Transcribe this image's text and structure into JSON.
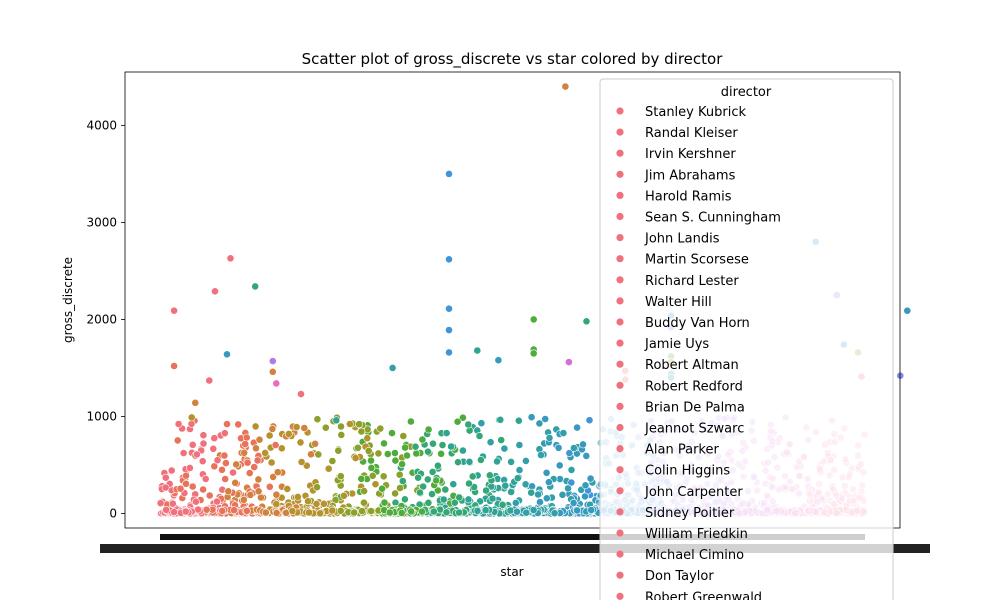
{
  "chart_data": {
    "type": "scatter",
    "title": "Scatter plot of gross_discrete vs star colored by director",
    "xlabel": "star",
    "ylabel": "gross_discrete",
    "ylim": [
      -150,
      4550
    ],
    "yticks": [
      0,
      1000,
      2000,
      3000,
      4000
    ],
    "grid": false,
    "legend": {
      "title": "director",
      "placement": "top-right",
      "entries": [
        {
          "name": "Stanley Kubrick",
          "color": "#f0717c"
        },
        {
          "name": "Randal Kleiser",
          "color": "#f0717c"
        },
        {
          "name": "Irvin Kershner",
          "color": "#f0717c"
        },
        {
          "name": "Jim Abrahams",
          "color": "#f0717c"
        },
        {
          "name": "Harold Ramis",
          "color": "#f0717c"
        },
        {
          "name": "Sean S. Cunningham",
          "color": "#f0717c"
        },
        {
          "name": "John Landis",
          "color": "#f0717c"
        },
        {
          "name": "Martin Scorsese",
          "color": "#f0717c"
        },
        {
          "name": "Richard Lester",
          "color": "#f0717c"
        },
        {
          "name": "Walter Hill",
          "color": "#f0717c"
        },
        {
          "name": "Buddy Van Horn",
          "color": "#f0717c"
        },
        {
          "name": "Jamie Uys",
          "color": "#f0717c"
        },
        {
          "name": "Robert Altman",
          "color": "#f0717c"
        },
        {
          "name": "Robert Redford",
          "color": "#f0717c"
        },
        {
          "name": "Brian De Palma",
          "color": "#f0717c"
        },
        {
          "name": "Jeannot Szwarc",
          "color": "#f0717c"
        },
        {
          "name": "Alan Parker",
          "color": "#f0717c"
        },
        {
          "name": "Colin Higgins",
          "color": "#f0717c"
        },
        {
          "name": "John Carpenter",
          "color": "#f0717c"
        },
        {
          "name": "Sidney Poitier",
          "color": "#f0717c"
        },
        {
          "name": "William Friedkin",
          "color": "#f0717c"
        },
        {
          "name": "Michael Cimino",
          "color": "#f0717c"
        },
        {
          "name": "Don Taylor",
          "color": "#f0717c"
        },
        {
          "name": "Robert Greenwald",
          "color": "#f0717c"
        }
      ]
    },
    "palette": [
      "#f0717c",
      "#e8735a",
      "#d3813f",
      "#b5922d",
      "#8f9f2b",
      "#4fab3a",
      "#35a776",
      "#31a393",
      "#339fa8",
      "#379abd",
      "#4294d6",
      "#7f8ae8",
      "#b07de8",
      "#d46fd6",
      "#ee6ab8",
      "#f47298"
    ],
    "highlights": [
      {
        "x": 0.02,
        "y": 2090,
        "color": "#f0717c"
      },
      {
        "x": 0.02,
        "y": 1520,
        "color": "#e8735a"
      },
      {
        "x": 0.05,
        "y": 1140,
        "color": "#d3813f"
      },
      {
        "x": 0.045,
        "y": 990,
        "color": "#b5922d"
      },
      {
        "x": 0.07,
        "y": 1370,
        "color": "#f0717c"
      },
      {
        "x": 0.078,
        "y": 2290,
        "color": "#f0717c"
      },
      {
        "x": 0.095,
        "y": 1640,
        "color": "#379abd"
      },
      {
        "x": 0.1,
        "y": 2630,
        "color": "#f0717c"
      },
      {
        "x": 0.135,
        "y": 2340,
        "color": "#35a776"
      },
      {
        "x": 0.16,
        "y": 1570,
        "color": "#b07de8"
      },
      {
        "x": 0.16,
        "y": 1460,
        "color": "#d3813f"
      },
      {
        "x": 0.165,
        "y": 1340,
        "color": "#ee6ab8"
      },
      {
        "x": 0.2,
        "y": 1230,
        "color": "#f0717c"
      },
      {
        "x": 0.25,
        "y": 960,
        "color": "#31a393"
      },
      {
        "x": 0.33,
        "y": 1500,
        "color": "#339fa8"
      },
      {
        "x": 0.41,
        "y": 3500,
        "color": "#4294d6"
      },
      {
        "x": 0.41,
        "y": 2620,
        "color": "#4294d6"
      },
      {
        "x": 0.41,
        "y": 2110,
        "color": "#4294d6"
      },
      {
        "x": 0.41,
        "y": 1890,
        "color": "#4294d6"
      },
      {
        "x": 0.41,
        "y": 1660,
        "color": "#4294d6"
      },
      {
        "x": 0.45,
        "y": 1680,
        "color": "#31a393"
      },
      {
        "x": 0.48,
        "y": 1580,
        "color": "#379abd"
      },
      {
        "x": 0.53,
        "y": 2000,
        "color": "#4fab3a"
      },
      {
        "x": 0.53,
        "y": 1690,
        "color": "#4fab3a"
      },
      {
        "x": 0.53,
        "y": 1650,
        "color": "#4fab3a"
      },
      {
        "x": 0.575,
        "y": 4400,
        "color": "#d3813f"
      },
      {
        "x": 0.58,
        "y": 1560,
        "color": "#d46fd6"
      },
      {
        "x": 0.605,
        "y": 1980,
        "color": "#35a776"
      },
      {
        "x": 0.66,
        "y": 1470,
        "color": "#f0717c"
      },
      {
        "x": 0.66,
        "y": 1380,
        "color": "#e8735a"
      },
      {
        "x": 0.725,
        "y": 2040,
        "color": "#4294d6"
      },
      {
        "x": 0.725,
        "y": 1920,
        "color": "#7f8ae8"
      },
      {
        "x": 0.725,
        "y": 1620,
        "color": "#4fab3a"
      },
      {
        "x": 0.725,
        "y": 1560,
        "color": "#b5922d"
      },
      {
        "x": 0.725,
        "y": 1440,
        "color": "#379abd"
      },
      {
        "x": 0.725,
        "y": 1400,
        "color": "#339fa8"
      },
      {
        "x": 0.93,
        "y": 2800,
        "color": "#4294d6"
      },
      {
        "x": 0.96,
        "y": 2250,
        "color": "#b07de8"
      },
      {
        "x": 0.97,
        "y": 1740,
        "color": "#379abd"
      },
      {
        "x": 0.99,
        "y": 1660,
        "color": "#b5922d"
      },
      {
        "x": 1.06,
        "y": 2090,
        "color": "#379abd"
      },
      {
        "x": 0.995,
        "y": 1410,
        "color": "#ee6ab8"
      },
      {
        "x": 1.05,
        "y": 1420,
        "color": "#7f8ae8"
      }
    ]
  }
}
